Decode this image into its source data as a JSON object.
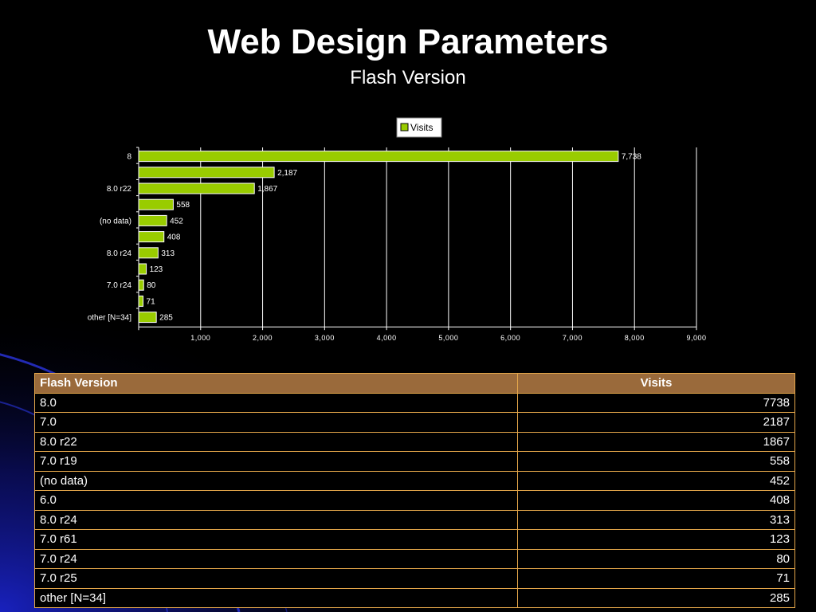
{
  "slide": {
    "title": "Web Design Parameters",
    "subtitle": "Flash Version"
  },
  "colors": {
    "background": "#000000",
    "accent_blue": "#1a23c8",
    "bar_fill": "#99cc00",
    "table_header": "#9a6a3b",
    "table_border": "#e3a64a"
  },
  "chart_data": {
    "type": "bar",
    "orientation": "horizontal",
    "categories": [
      "8",
      "",
      "8.0  r22",
      "",
      "(no data)",
      "",
      "8.0  r24",
      "",
      "7.0 r24",
      "",
      "other [N=34]"
    ],
    "series": [
      {
        "name": "Visits",
        "values": [
          7738,
          2187,
          1867,
          558,
          452,
          408,
          313,
          123,
          80,
          71,
          285
        ]
      }
    ],
    "data_labels": [
      "7,738",
      "2,187",
      "1,867",
      "558",
      "452",
      "408",
      "313",
      "123",
      "80",
      "71",
      "285"
    ],
    "x_ticks": [
      "1,000",
      "2,000",
      "3,000",
      "4,000",
      "5,000",
      "6,000",
      "7,000",
      "8,000",
      "9,000"
    ],
    "xlim": [
      0,
      9000
    ],
    "grid": true,
    "legend": "top-center"
  },
  "table": {
    "headers": [
      "Flash Version",
      "Visits"
    ],
    "rows": [
      [
        "8.0",
        "7738"
      ],
      [
        "7.0",
        "2187"
      ],
      [
        "8.0  r22",
        "1867"
      ],
      [
        "7.0  r19",
        "558"
      ],
      [
        "(no data)",
        "452"
      ],
      [
        "6.0",
        "408"
      ],
      [
        "8.0  r24",
        "313"
      ],
      [
        "7.0  r61",
        "123"
      ],
      [
        "7.0 r24",
        "80"
      ],
      [
        "7.0 r25",
        "71"
      ],
      [
        "other [N=34]",
        "285"
      ]
    ]
  }
}
